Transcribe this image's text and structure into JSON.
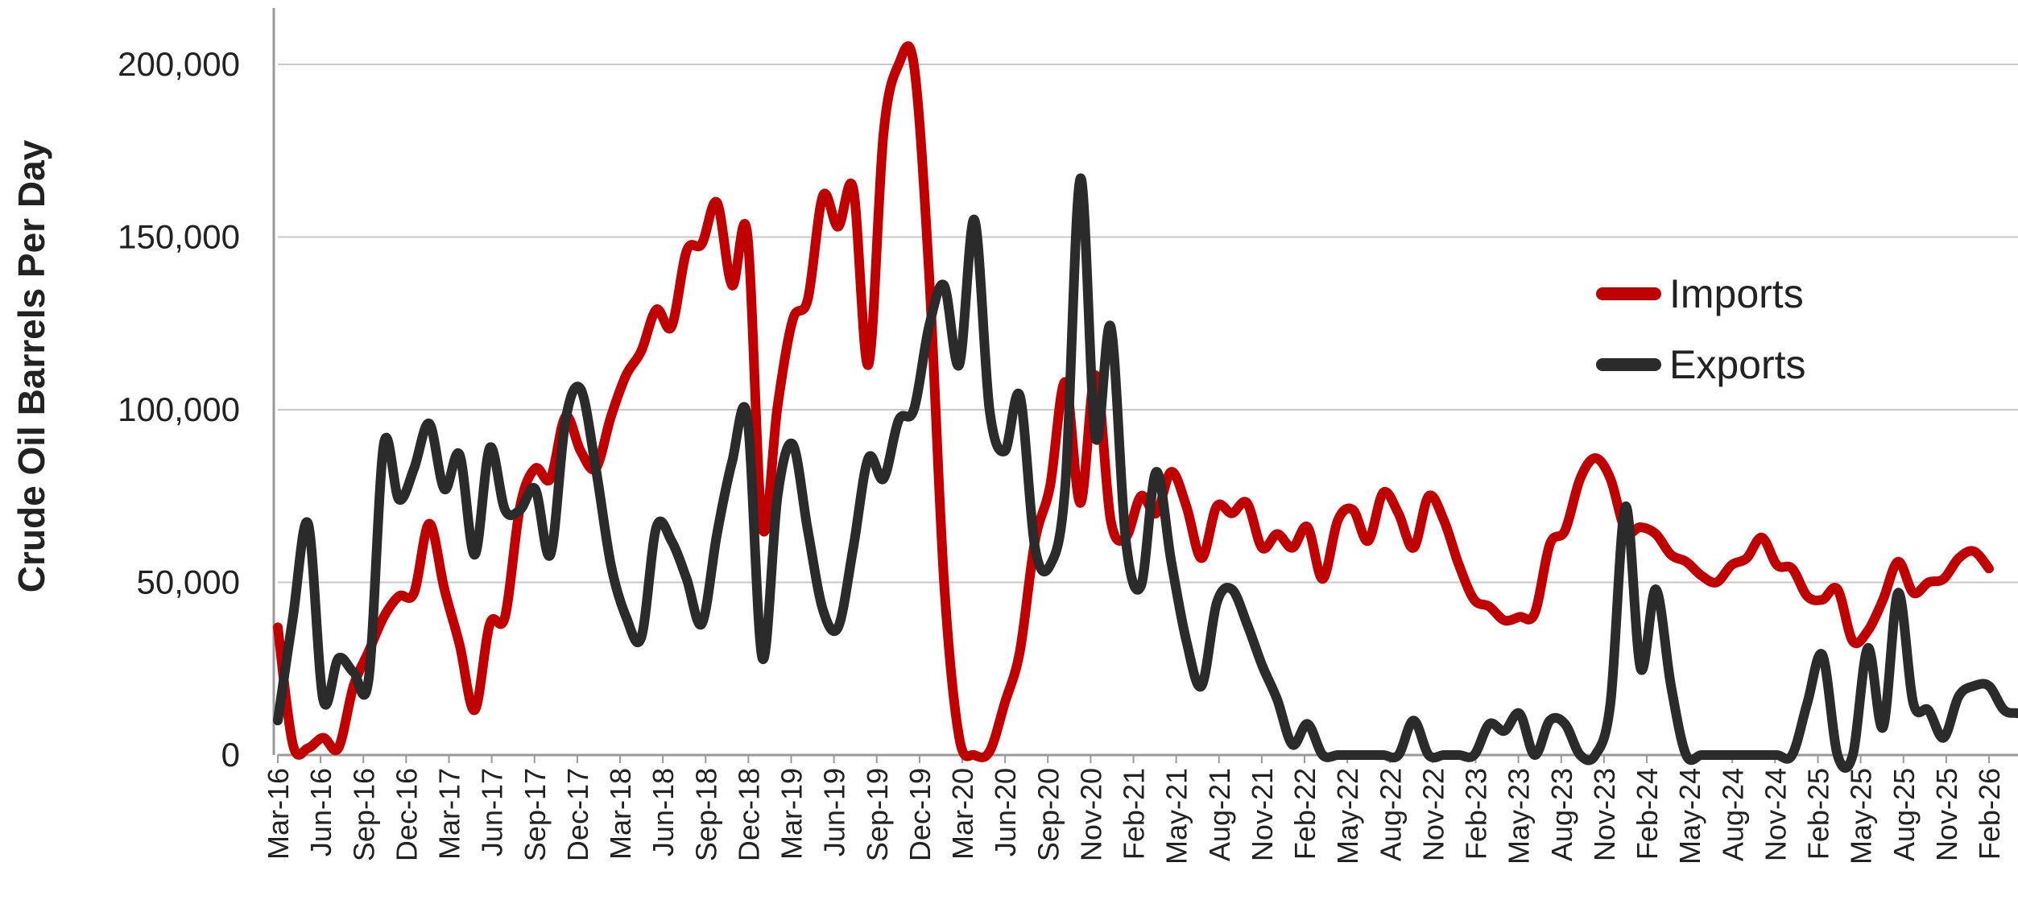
{
  "chart_data": {
    "type": "line",
    "title": "",
    "xlabel": "",
    "ylabel": "Crude Oil Barrels Per Day",
    "ylim": [
      0,
      200000
    ],
    "yticks": [
      0,
      50000,
      100000,
      150000,
      200000
    ],
    "ytick_labels": [
      "0",
      "50,000",
      "100,000",
      "150,000",
      "200,000"
    ],
    "xtick_labels": [
      "Mar-16",
      "Jun-16",
      "Sep-16",
      "Dec-16",
      "Mar-17",
      "Jun-17",
      "Sep-17",
      "Dec-17",
      "Mar-18",
      "Jun-18",
      "Sep-18",
      "Dec-18",
      "Mar-19",
      "Jun-19",
      "Sep-19",
      "Dec-19",
      "Mar-20",
      "Jun-20",
      "Sep-20",
      "Nov-20",
      "Feb-21",
      "May-21",
      "Aug-21",
      "Nov-21",
      "Feb-22",
      "May-22",
      "Aug-22",
      "Nov-22",
      "Feb-23",
      "May-23",
      "Aug-23",
      "Nov-23",
      "Feb-24",
      "May-24",
      "Aug-24",
      "Nov-24",
      "Feb-25",
      "May-25",
      "Aug-25",
      "Nov-25",
      "Feb-26"
    ],
    "grid": "horizontal",
    "legend_position": "right",
    "x_start": "2016-03",
    "series": [
      {
        "name": "Imports",
        "color": "#c00000",
        "values": [
          37000,
          3000,
          2000,
          5000,
          2000,
          20000,
          30000,
          40000,
          46000,
          47000,
          67000,
          48000,
          32000,
          13000,
          38000,
          40000,
          72000,
          83000,
          80000,
          98000,
          88000,
          83000,
          98000,
          110000,
          117000,
          129000,
          124000,
          146000,
          148000,
          160000,
          136000,
          151000,
          66000,
          101000,
          126000,
          132000,
          162000,
          153000,
          164000,
          113000,
          180000,
          200000,
          200000,
          140000,
          50000,
          5000,
          0,
          1000,
          15000,
          30000,
          62000,
          78000,
          108000,
          73000,
          110000,
          68000,
          63000,
          75000,
          70000,
          82000,
          72000,
          57000,
          72000,
          70000,
          73000,
          60000,
          64000,
          60000,
          66000,
          51000,
          68000,
          71000,
          62000,
          76000,
          70000,
          60000,
          75000,
          68000,
          55000,
          45000,
          43000,
          39000,
          40000,
          41000,
          61000,
          65000,
          80000,
          86000,
          80000,
          65000,
          66000,
          64000,
          58000,
          56000,
          52000,
          50000,
          55000,
          57000,
          63000,
          55000,
          54000,
          46000,
          45000,
          48000,
          33000,
          36000,
          45000,
          56000,
          47000,
          50000,
          51000,
          57000,
          59000,
          54000
        ]
      },
      {
        "name": "Exports",
        "color": "#2b2b2b",
        "values": [
          10000,
          40000,
          67000,
          16000,
          28000,
          24000,
          22000,
          90000,
          74000,
          83000,
          96000,
          77000,
          87000,
          58000,
          89000,
          71000,
          71000,
          77000,
          58000,
          97000,
          106000,
          83000,
          55000,
          40000,
          34000,
          66000,
          62000,
          51000,
          38000,
          64000,
          85000,
          98000,
          28000,
          75000,
          90000,
          65000,
          42000,
          37000,
          60000,
          86000,
          80000,
          97000,
          100000,
          124000,
          136000,
          113000,
          155000,
          100000,
          88000,
          104000,
          60000,
          55000,
          78000,
          167000,
          92000,
          124000,
          62000,
          49000,
          82000,
          56000,
          33000,
          20000,
          44000,
          48000,
          38000,
          26000,
          16000,
          3000,
          9000,
          0,
          0,
          0,
          0,
          0,
          0,
          10000,
          0,
          0,
          0,
          0,
          9000,
          7000,
          12000,
          0,
          10000,
          9000,
          0,
          0,
          15000,
          72000,
          25000,
          48000,
          20000,
          0,
          0,
          0,
          0,
          0,
          0,
          0,
          0,
          15000,
          29000,
          0,
          0,
          31000,
          8000,
          47000,
          15000,
          13000,
          5000,
          17000,
          20000,
          20000,
          13000,
          12000,
          10000,
          14000,
          5000,
          10000,
          20000
        ]
      }
    ]
  }
}
